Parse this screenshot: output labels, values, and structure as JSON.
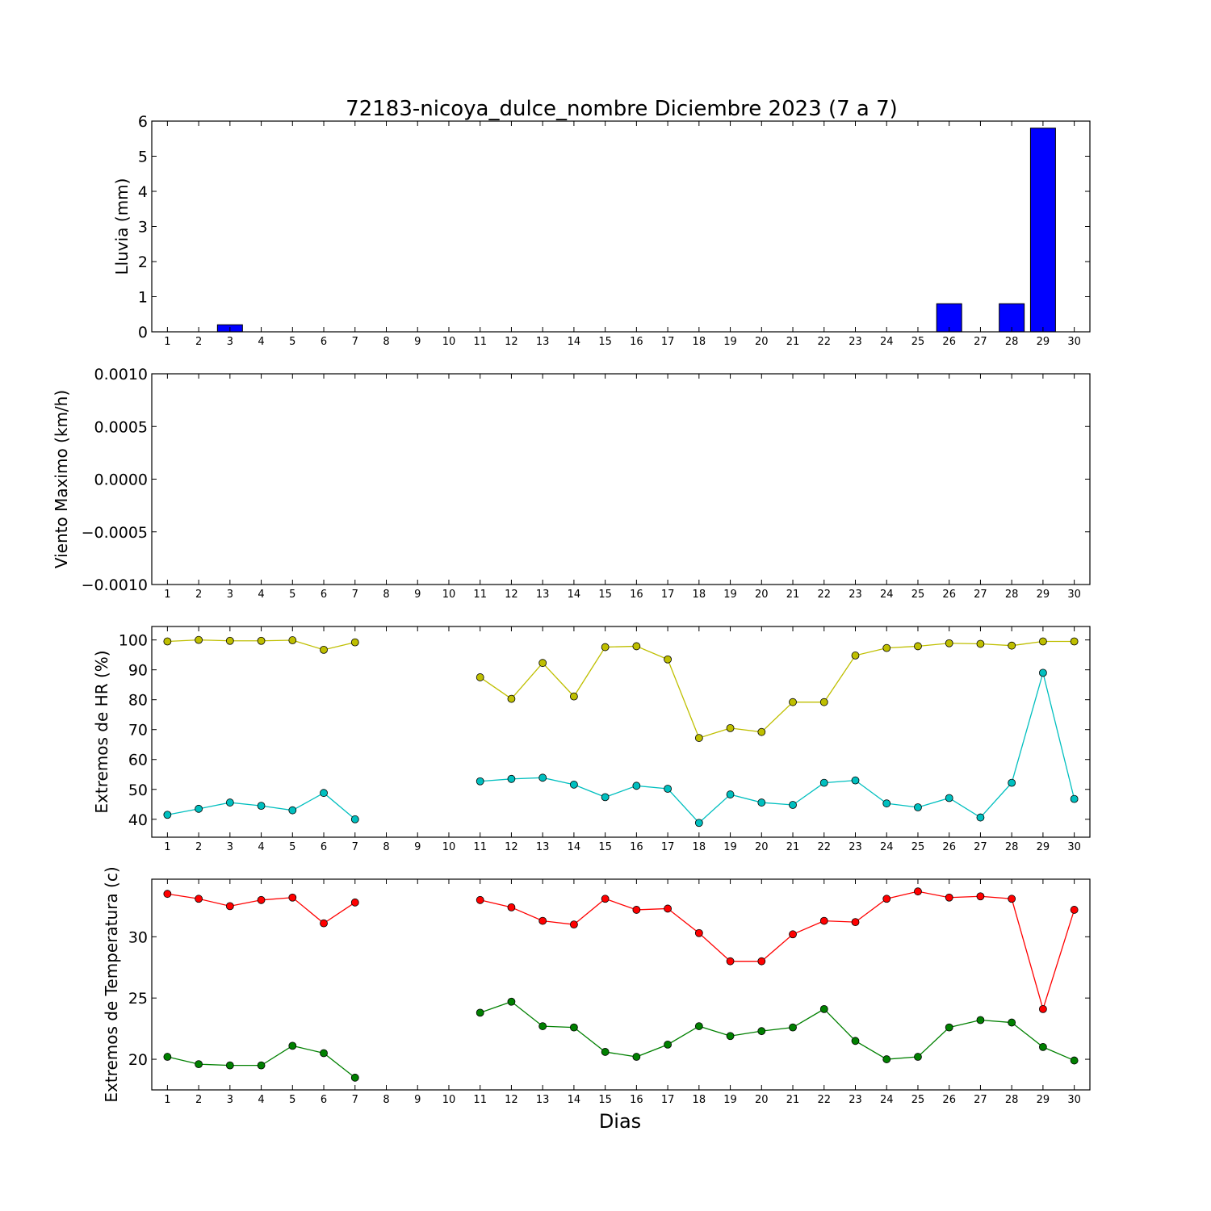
{
  "title": "72183-nicoya_dulce_nombre Diciembre 2023  (7 a 7)",
  "xlabel": "Dias",
  "days": [
    1,
    2,
    3,
    4,
    5,
    6,
    7,
    8,
    9,
    10,
    11,
    12,
    13,
    14,
    15,
    16,
    17,
    18,
    19,
    20,
    21,
    22,
    23,
    24,
    25,
    26,
    27,
    28,
    29,
    30
  ],
  "colors": {
    "rain": "#0000ff",
    "hr_max": "#bfbf00",
    "hr_min": "#00bfbf",
    "temp_max": "#ff0000",
    "temp_min": "#008000"
  },
  "chart_data": [
    {
      "type": "bar",
      "ylabel": "Lluvia (mm)",
      "ylim": [
        0,
        6
      ],
      "yticks": [
        0,
        1,
        2,
        3,
        4,
        5,
        6
      ],
      "ytick_labels": [
        "0",
        "1",
        "2",
        "3",
        "4",
        "5",
        "6"
      ],
      "x": [
        1,
        2,
        3,
        4,
        5,
        6,
        7,
        8,
        9,
        10,
        11,
        12,
        13,
        14,
        15,
        16,
        17,
        18,
        19,
        20,
        21,
        22,
        23,
        24,
        25,
        26,
        27,
        28,
        29,
        30
      ],
      "values": [
        0,
        0,
        0.2,
        0,
        0,
        0,
        0,
        0,
        0,
        0,
        0,
        0,
        0,
        0,
        0,
        0,
        0,
        0,
        0,
        0,
        0,
        0,
        0,
        0,
        0,
        0.8,
        0,
        0.8,
        5.8,
        0
      ]
    },
    {
      "type": "line",
      "ylabel": "Viento Maximo (km/h)",
      "ylim": [
        -0.001,
        0.001
      ],
      "yticks": [
        -0.001,
        -0.0005,
        0,
        0.0005,
        0.001
      ],
      "ytick_labels": [
        "−0.0010",
        "−0.0005",
        "0.0000",
        "0.0005",
        "0.0010"
      ],
      "series": []
    },
    {
      "type": "line",
      "ylabel": "Extremos de HR (%)",
      "ylim": [
        34,
        104.5
      ],
      "yticks": [
        40,
        50,
        60,
        70,
        80,
        90,
        100
      ],
      "ytick_labels": [
        "40",
        "50",
        "60",
        "70",
        "80",
        "90",
        "100"
      ],
      "x": [
        1,
        2,
        3,
        4,
        5,
        6,
        7,
        8,
        9,
        10,
        11,
        12,
        13,
        14,
        15,
        16,
        17,
        18,
        19,
        20,
        21,
        22,
        23,
        24,
        25,
        26,
        27,
        28,
        29,
        30
      ],
      "series": [
        {
          "color_key": "hr_max",
          "values": [
            99.5,
            100,
            99.7,
            99.7,
            99.9,
            96.7,
            99.2,
            null,
            null,
            null,
            87.5,
            80.3,
            92.3,
            81.1,
            97.6,
            97.9,
            93.5,
            67.2,
            70.5,
            69.2,
            79.2,
            79.2,
            94.8,
            97.3,
            97.9,
            98.9,
            98.7,
            98.1,
            99.5,
            99.5
          ]
        },
        {
          "color_key": "hr_min",
          "values": [
            41.5,
            43.5,
            45.6,
            44.5,
            43.0,
            48.8,
            40.0,
            null,
            null,
            null,
            52.7,
            53.5,
            53.9,
            51.6,
            47.4,
            51.2,
            50.2,
            38.8,
            48.3,
            45.6,
            44.8,
            52.2,
            53.0,
            45.3,
            44.0,
            47.1,
            40.6,
            52.2,
            89.0,
            46.8
          ]
        }
      ]
    },
    {
      "type": "line",
      "ylabel": "Extremos de Temperatura (c)",
      "ylim": [
        17.5,
        34.7
      ],
      "yticks": [
        20,
        25,
        30
      ],
      "ytick_labels": [
        "20",
        "25",
        "30"
      ],
      "x": [
        1,
        2,
        3,
        4,
        5,
        6,
        7,
        8,
        9,
        10,
        11,
        12,
        13,
        14,
        15,
        16,
        17,
        18,
        19,
        20,
        21,
        22,
        23,
        24,
        25,
        26,
        27,
        28,
        29,
        30
      ],
      "series": [
        {
          "color_key": "temp_max",
          "values": [
            33.5,
            33.1,
            32.5,
            33.0,
            33.2,
            31.1,
            32.8,
            null,
            null,
            null,
            33.0,
            32.4,
            31.3,
            31.0,
            33.1,
            32.2,
            32.3,
            30.3,
            28.0,
            28.0,
            30.2,
            31.3,
            31.2,
            33.1,
            33.7,
            33.2,
            33.3,
            33.1,
            24.1,
            32.2
          ]
        },
        {
          "color_key": "temp_min",
          "values": [
            20.2,
            19.6,
            19.5,
            19.5,
            21.1,
            20.5,
            18.5,
            null,
            null,
            null,
            23.8,
            24.7,
            22.7,
            22.6,
            20.6,
            20.2,
            21.2,
            22.7,
            21.9,
            22.3,
            22.6,
            24.1,
            21.5,
            20.0,
            20.2,
            22.6,
            23.2,
            23.0,
            21.0,
            19.9
          ]
        }
      ]
    }
  ]
}
